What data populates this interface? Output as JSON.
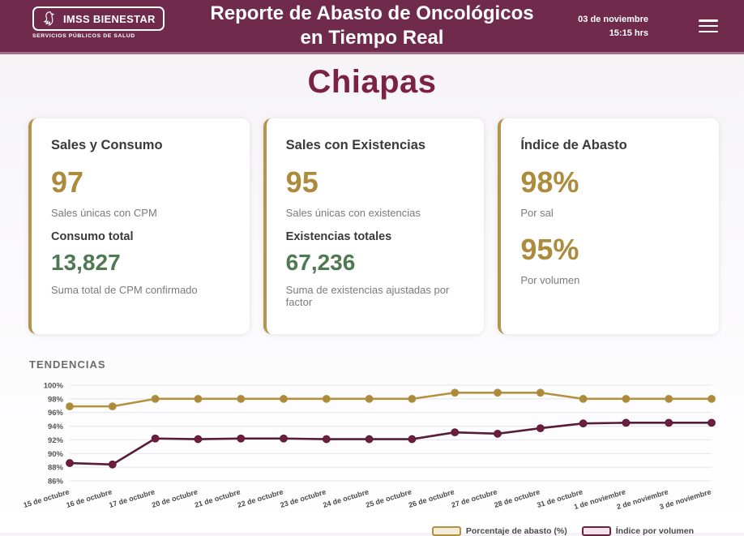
{
  "header": {
    "brand": "IMSS BIENESTAR",
    "brand_subtitle": "SERVICIOS PÚBLICOS DE SALUD",
    "title_line1": "Reporte de Abasto de Oncológicos",
    "title_line2": "en Tiempo Real",
    "date": "03 de noviembre",
    "time": "15:15 hrs"
  },
  "page": {
    "state_title": "Chiapas"
  },
  "cards": [
    {
      "title": "Sales y Consumo",
      "primary_value": "97",
      "primary_caption": "Sales únicas con CPM",
      "secondary_label": "Consumo total",
      "secondary_value": "13,827",
      "secondary_caption": "Suma total de CPM confirmado"
    },
    {
      "title": "Sales con Existencias",
      "primary_value": "95",
      "primary_caption": "Sales únicas con existencias",
      "secondary_label": "Existencias totales",
      "secondary_value": "67,236",
      "secondary_caption": "Suma de existencias ajustadas por factor"
    },
    {
      "title": "Índice de Abasto",
      "primary_value": "98%",
      "primary_caption": "Por sal",
      "secondary_value": "95%",
      "secondary_caption": "Por volumen"
    }
  ],
  "chart_data": {
    "type": "line",
    "title": "TENDENCIAS",
    "categories": [
      "15 de octubre",
      "16 de octubre",
      "17 de octubre",
      "20 de octubre",
      "21 de octubre",
      "22 de octubre",
      "23 de octubre",
      "24 de octubre",
      "25 de octubre",
      "26 de octubre",
      "27 de octubre",
      "28 de octubre",
      "31 de octubre",
      "1 de noviembre",
      "2 de noviembre",
      "3 de noviembre"
    ],
    "series": [
      {
        "name": "Porcentaje de abasto (%)",
        "color": "#b3913f",
        "dot_color": "#ac8a3c",
        "values": [
          96.9,
          96.9,
          98,
          98,
          98,
          98,
          98,
          98,
          98,
          98.9,
          98.9,
          98.9,
          98,
          98,
          98,
          98
        ]
      },
      {
        "name": "Índice por volumen",
        "color": "#571c36",
        "dot_color": "#6e1d40",
        "values": [
          88.6,
          88.4,
          92.2,
          92.1,
          92.2,
          92.2,
          92.1,
          92.1,
          92.1,
          93.1,
          92.9,
          93.7,
          94.4,
          94.5,
          94.5,
          94.5
        ]
      }
    ],
    "ylim": [
      86,
      100
    ],
    "ytick_step": 2,
    "ytick_suffix": "%",
    "grid": true,
    "legend_position": "bottom-right"
  },
  "colors": {
    "header_bg": "#6f2a4c",
    "header_strip": "#a4718c",
    "title_maroon": "#7b2146",
    "accent_gold": "#ac8b3c",
    "accent_green": "#4e7a52",
    "line_gold": "#b3913f",
    "line_maroon": "#571c36",
    "card_border_gold": "#b3954e"
  }
}
